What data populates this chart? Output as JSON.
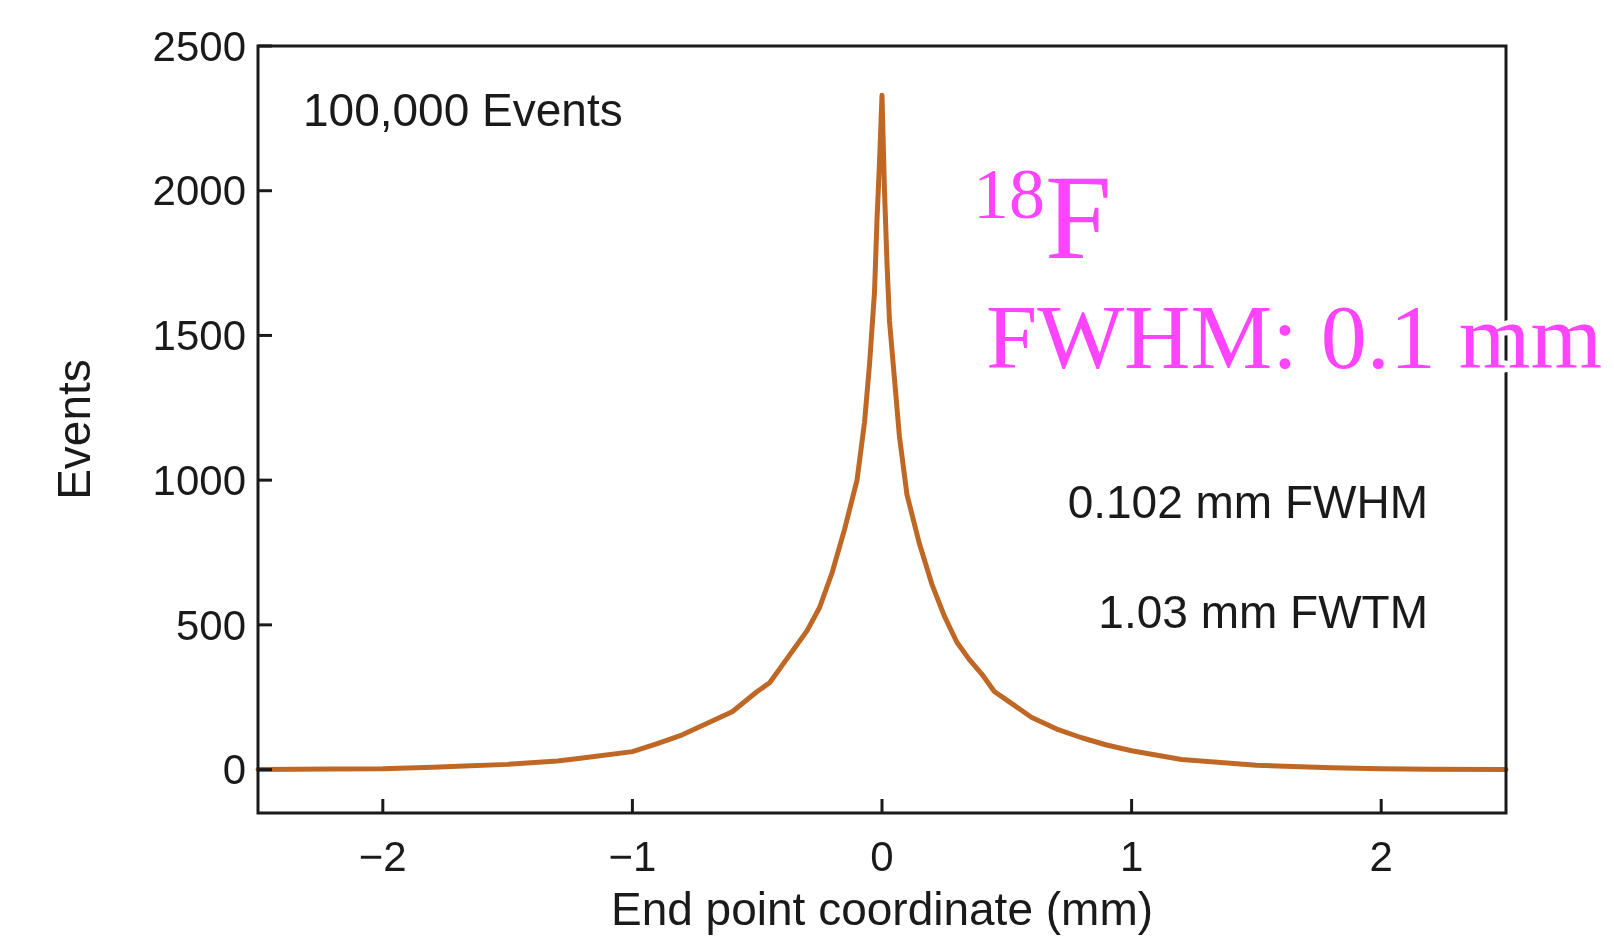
{
  "chart_data": {
    "type": "line",
    "xlabel": "End point coordinate (mm)",
    "ylabel": "Events",
    "xlim": [
      -2.5,
      2.5
    ],
    "xticks": [
      {
        "value": -2,
        "label": "−2"
      },
      {
        "value": -1,
        "label": "−1"
      },
      0,
      1,
      2
    ],
    "ylim": [
      -150,
      2500
    ],
    "yticks": [
      0,
      500,
      1000,
      1500,
      2000,
      2500
    ],
    "grid": false,
    "line_style": "solid",
    "annotations": [
      "100,000 Events",
      "0.102 mm FWHM",
      "1.03 mm FWTM",
      "$^{18}$F",
      "FWHM: 0.1 mm"
    ],
    "series": [
      {
        "color": "#bf6826",
        "x": [
          -2.5,
          -2.2,
          -2.0,
          -1.8,
          -1.5,
          -1.3,
          -1.2,
          -1.0,
          -0.9,
          -0.8,
          -0.7,
          -0.6,
          -0.5,
          -0.45,
          -0.4,
          -0.35,
          -0.3,
          -0.25,
          -0.2,
          -0.15,
          -0.1,
          -0.07,
          -0.05,
          -0.03,
          -0.02,
          -0.01,
          0,
          0.01,
          0.02,
          0.03,
          0.05,
          0.07,
          0.1,
          0.15,
          0.2,
          0.25,
          0.3,
          0.35,
          0.4,
          0.45,
          0.5,
          0.6,
          0.7,
          0.8,
          0.9,
          1.0,
          1.2,
          1.5,
          1.8,
          2.0,
          2.2,
          2.5
        ],
        "values": [
          0,
          2,
          3,
          8,
          18,
          30,
          40,
          62,
          90,
          120,
          160,
          200,
          270,
          300,
          360,
          420,
          480,
          560,
          680,
          830,
          1000,
          1200,
          1400,
          1650,
          1900,
          2100,
          2330,
          2000,
          1750,
          1550,
          1350,
          1150,
          950,
          780,
          640,
          530,
          440,
          380,
          330,
          270,
          240,
          180,
          140,
          110,
          85,
          65,
          35,
          15,
          6,
          3,
          1,
          0
        ]
      }
    ]
  }
}
